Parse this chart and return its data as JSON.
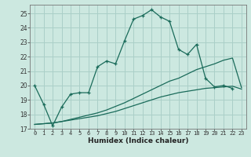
{
  "xlabel": "Humidex (Indice chaleur)",
  "ylabel": "",
  "bg_color": "#cce8e0",
  "grid_color": "#aacfc8",
  "line_color": "#1a6b5a",
  "xlim": [
    -0.5,
    23.5
  ],
  "ylim": [
    17,
    25.6
  ],
  "yticks": [
    17,
    18,
    19,
    20,
    21,
    22,
    23,
    24,
    25
  ],
  "xticks": [
    0,
    1,
    2,
    3,
    4,
    5,
    6,
    7,
    8,
    9,
    10,
    11,
    12,
    13,
    14,
    15,
    16,
    17,
    18,
    19,
    20,
    21,
    22,
    23
  ],
  "series1_x": [
    0,
    1,
    2,
    3,
    4,
    5,
    6,
    7,
    8,
    9,
    10,
    11,
    12,
    13,
    14,
    15,
    16,
    17,
    18,
    19,
    20,
    21,
    22
  ],
  "series1_y": [
    20.0,
    18.7,
    17.2,
    18.5,
    19.4,
    19.5,
    19.5,
    21.3,
    21.7,
    21.5,
    23.1,
    24.6,
    24.85,
    25.25,
    24.75,
    24.45,
    22.5,
    22.15,
    22.85,
    20.5,
    19.9,
    20.0,
    19.8
  ],
  "series2_x": [
    0,
    1,
    2,
    3,
    4,
    5,
    6,
    7,
    8,
    9,
    10,
    11,
    12,
    13,
    14,
    15,
    16,
    17,
    18,
    19,
    20,
    21,
    22,
    23
  ],
  "series2_y": [
    17.3,
    17.35,
    17.4,
    17.5,
    17.6,
    17.7,
    17.8,
    17.9,
    18.05,
    18.2,
    18.4,
    18.6,
    18.8,
    19.0,
    19.2,
    19.35,
    19.5,
    19.6,
    19.7,
    19.8,
    19.85,
    19.9,
    19.95,
    19.75
  ],
  "series3_x": [
    0,
    1,
    2,
    3,
    4,
    5,
    6,
    7,
    8,
    9,
    10,
    11,
    12,
    13,
    14,
    15,
    16,
    17,
    18,
    19,
    20,
    21,
    22,
    23
  ],
  "series3_y": [
    17.3,
    17.35,
    17.4,
    17.5,
    17.65,
    17.8,
    17.95,
    18.1,
    18.3,
    18.55,
    18.8,
    19.1,
    19.4,
    19.7,
    20.0,
    20.3,
    20.5,
    20.8,
    21.1,
    21.3,
    21.5,
    21.75,
    21.9,
    19.85
  ]
}
